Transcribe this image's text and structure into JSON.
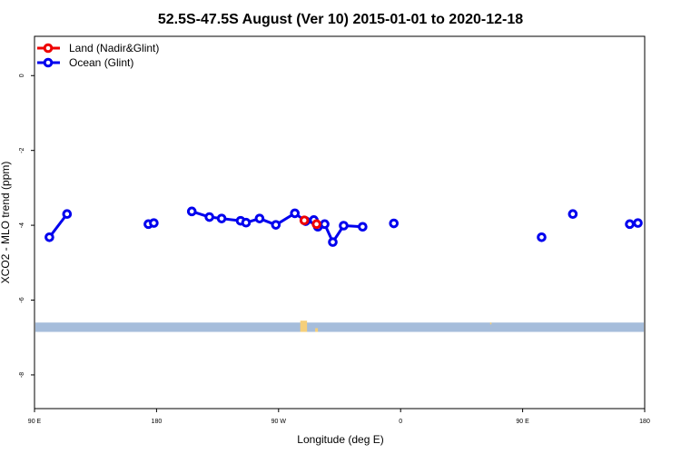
{
  "chart_data": {
    "type": "scatter",
    "title": "52.5S-47.5S August (Ver 10)   2015-01-01 to 2020-12-18",
    "xlabel": "Longitude (deg E)",
    "ylabel": "XCO2 - MLO trend (ppm)",
    "xlim": [
      90,
      540
    ],
    "ylim": [
      -8.9,
      1.05
    ],
    "x_ticks": [
      {
        "value": 90,
        "label": "90 E"
      },
      {
        "value": 180,
        "label": "180"
      },
      {
        "value": 270,
        "label": "90 W"
      },
      {
        "value": 360,
        "label": "0"
      },
      {
        "value": 450,
        "label": "90 E"
      },
      {
        "value": 540,
        "label": "180"
      }
    ],
    "y_ticks": [
      {
        "value": 0,
        "label": "0"
      },
      {
        "value": -2,
        "label": "-2"
      },
      {
        "value": -4,
        "label": "-4"
      },
      {
        "value": -6,
        "label": "-6"
      },
      {
        "value": -8,
        "label": "-8"
      }
    ],
    "legend_position": "top-left",
    "series": [
      {
        "name": "Land (Nadir&Glint)",
        "color": "#ee0000",
        "x": [
          289,
          298
        ],
        "y": [
          -3.87,
          -3.97
        ]
      },
      {
        "name": "Ocean (Glint)",
        "color": "#0000ee",
        "x": [
          101,
          114,
          174,
          178,
          206,
          219,
          228,
          242,
          246,
          256,
          268,
          282,
          290,
          296,
          299,
          304,
          310,
          318,
          332,
          355,
          464,
          487,
          529,
          535
        ],
        "y": [
          -4.32,
          -3.7,
          -3.97,
          -3.94,
          -3.63,
          -3.78,
          -3.82,
          -3.88,
          -3.93,
          -3.82,
          -3.99,
          -3.68,
          -3.89,
          -3.86,
          -4.04,
          -3.97,
          -4.45,
          -4.01,
          -4.04,
          -3.95,
          -4.32,
          -3.7,
          -3.97,
          -3.94
        ]
      }
    ],
    "land_band": {
      "y_range": [
        -6.6,
        -6.85
      ],
      "ocean_color": "#a6bddb",
      "land_color": "#f5cf7a",
      "land_patches": [
        {
          "x_range": [
            286,
            291
          ],
          "y_range": [
            -6.55,
            -6.85
          ]
        },
        {
          "x_range": [
            297,
            299
          ],
          "y_range": [
            -6.75,
            -6.85
          ]
        },
        {
          "x_range": [
            426,
            427
          ],
          "y_range": [
            -6.6,
            -6.65
          ]
        }
      ]
    }
  }
}
